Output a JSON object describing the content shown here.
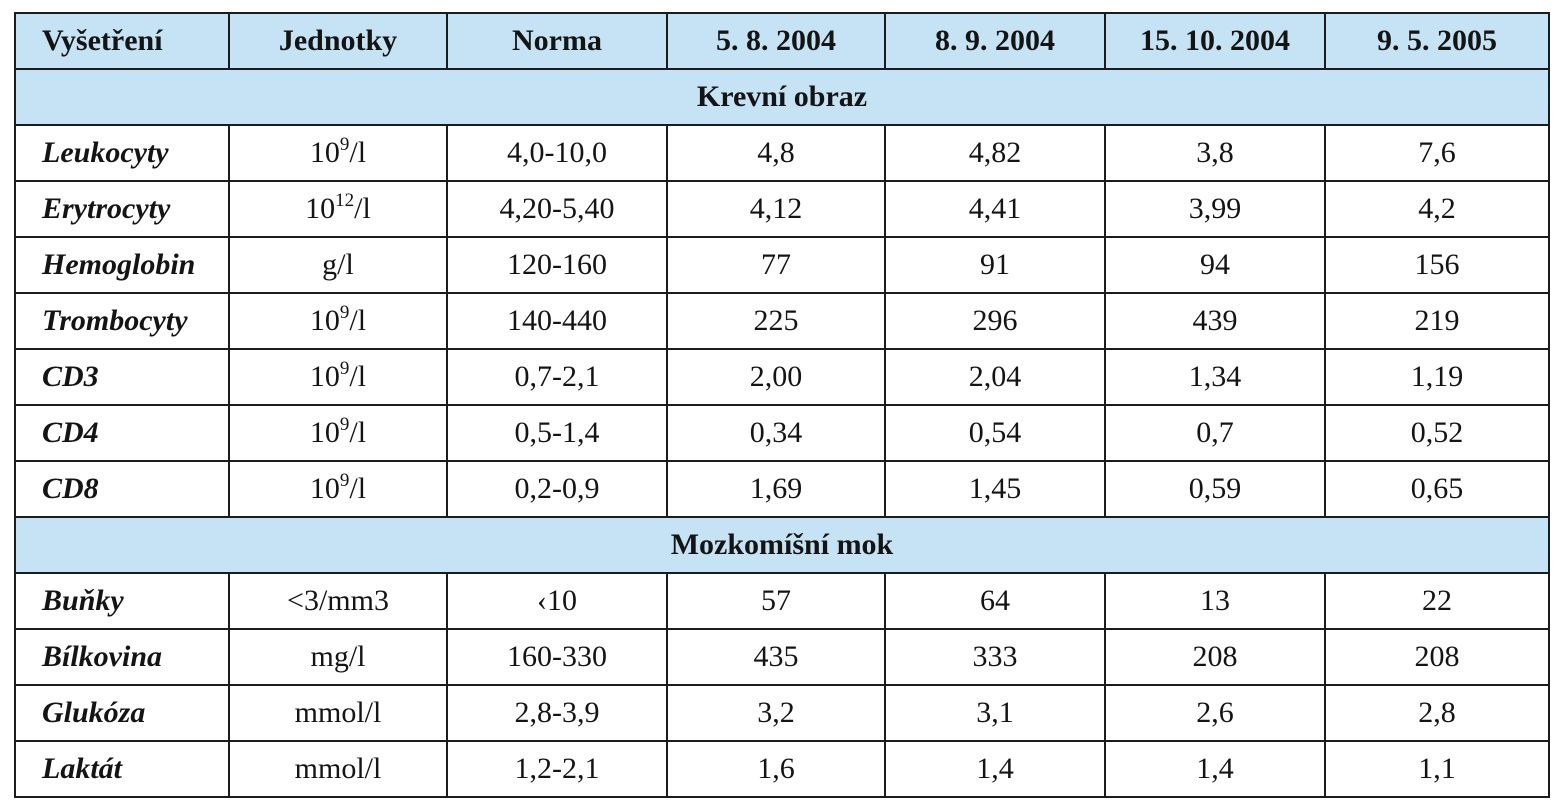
{
  "header": {
    "vysetreni": "Vyšetření",
    "jednotky": "Jednotky",
    "norma": "Norma",
    "dates": [
      "5. 8. 2004",
      "8. 9. 2004",
      "15. 10. 2004",
      "9. 5. 2005"
    ]
  },
  "sections": [
    {
      "title": "Krevní obraz",
      "rows": [
        {
          "name": "Leukocyty",
          "unit_base": "10",
          "unit_exp": "9",
          "unit_rest": "/l",
          "norm": "4,0-10,0",
          "values": [
            "4,8",
            "4,82",
            "3,8",
            "7,6"
          ]
        },
        {
          "name": "Erytrocyty",
          "unit_base": "10",
          "unit_exp": "12",
          "unit_rest": "/l",
          "norm": "4,20-5,40",
          "values": [
            "4,12",
            "4,41",
            "3,99",
            "4,2"
          ]
        },
        {
          "name": "Hemoglobin",
          "unit_base": "g/l",
          "unit_exp": "",
          "unit_rest": "",
          "norm": "120-160",
          "values": [
            "77",
            "91",
            "94",
            "156"
          ]
        },
        {
          "name": "Trombocyty",
          "unit_base": "10",
          "unit_exp": "9",
          "unit_rest": "/l",
          "norm": "140-440",
          "values": [
            "225",
            "296",
            "439",
            "219"
          ]
        },
        {
          "name": "CD3",
          "unit_base": "10",
          "unit_exp": "9",
          "unit_rest": "/l",
          "norm": "0,7-2,1",
          "values": [
            "2,00",
            "2,04",
            "1,34",
            "1,19"
          ]
        },
        {
          "name": "CD4",
          "unit_base": "10",
          "unit_exp": "9",
          "unit_rest": "/l",
          "norm": "0,5-1,4",
          "values": [
            "0,34",
            "0,54",
            "0,7",
            "0,52"
          ]
        },
        {
          "name": "CD8",
          "unit_base": "10",
          "unit_exp": "9",
          "unit_rest": "/l",
          "norm": "0,2-0,9",
          "values": [
            "1,69",
            "1,45",
            "0,59",
            "0,65"
          ]
        }
      ]
    },
    {
      "title": "Mozkomíšní mok",
      "rows": [
        {
          "name": "Buňky",
          "unit_base": "<3/mm3",
          "unit_exp": "",
          "unit_rest": "",
          "norm": "‹10",
          "values": [
            "57",
            "64",
            "13",
            "22"
          ]
        },
        {
          "name": "Bílkovina",
          "unit_base": "mg/l",
          "unit_exp": "",
          "unit_rest": "",
          "norm": "160-330",
          "values": [
            "435",
            "333",
            "208",
            "208"
          ]
        },
        {
          "name": "Glukóza",
          "unit_base": "mmol/l",
          "unit_exp": "",
          "unit_rest": "",
          "norm": "2,8-3,9",
          "values": [
            "3,2",
            "3,1",
            "2,6",
            "2,8"
          ]
        },
        {
          "name": "Laktát",
          "unit_base": "mmol/l",
          "unit_exp": "",
          "unit_rest": "",
          "norm": "1,2-2,1",
          "values": [
            "1,6",
            "1,4",
            "1,4",
            "1,1"
          ]
        }
      ]
    }
  ]
}
